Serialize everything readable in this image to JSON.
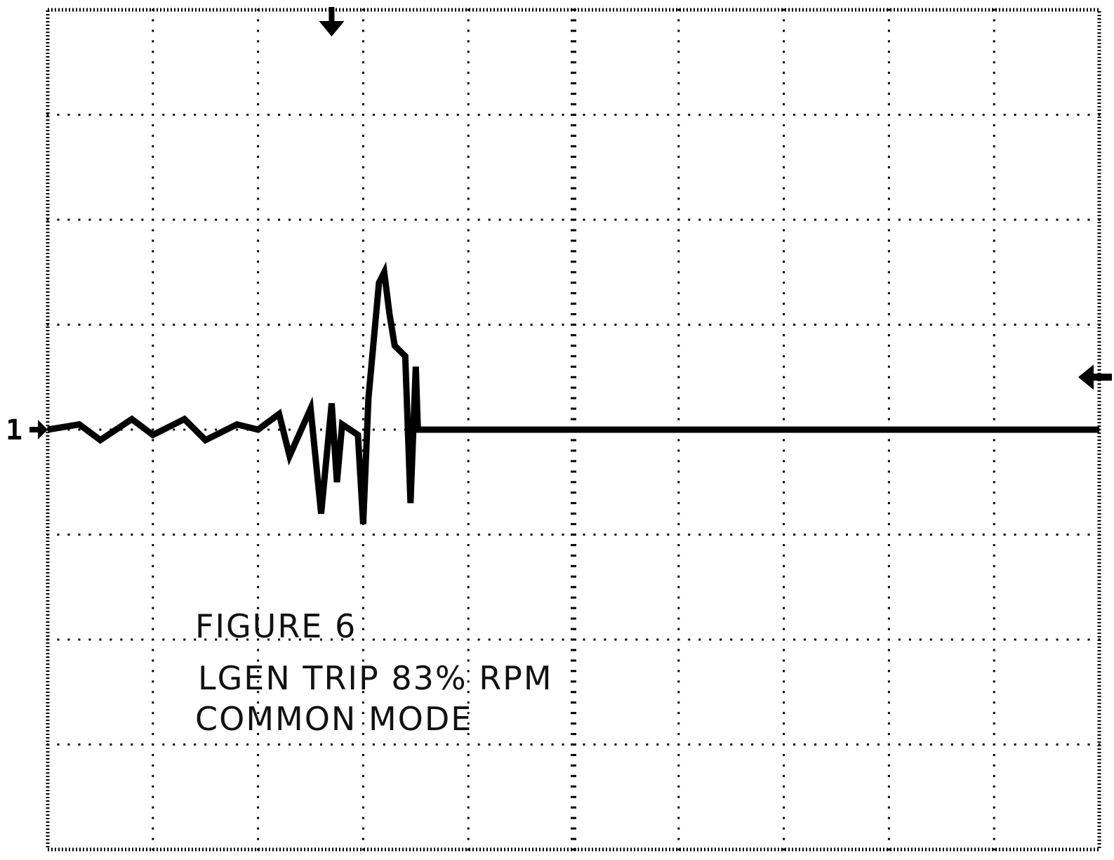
{
  "colors": {
    "background": "#ffffff",
    "trace": "#000000",
    "grid": "#000000",
    "annotation": "#111111"
  },
  "scope": {
    "channel_marker_label": "1",
    "trigger_marker_icon": "arrow-down-icon",
    "trigger_level_icon": "arrow-left-icon",
    "channel_marker_icon": "arrow-right-icon"
  },
  "annotation": {
    "line1": "FIGURE 6",
    "line2": "LGEN TRIP 83% RPM",
    "line3": "COMMON MODE"
  },
  "chart_data": {
    "type": "line",
    "title": "",
    "xlabel": "",
    "ylabel": "",
    "units": "divisions",
    "grid": true,
    "x_divisions": 10,
    "y_divisions": 8,
    "xlim": [
      0,
      10
    ],
    "ylim": [
      -4,
      4
    ],
    "series": [
      {
        "x": [
          0.0,
          0.3,
          0.5,
          0.8,
          1.0,
          1.3,
          1.5,
          1.8,
          2.0,
          2.2,
          2.3,
          2.5,
          2.6,
          2.7,
          2.75,
          2.8,
          2.95,
          3.0,
          3.05,
          3.15,
          3.2,
          3.25,
          3.3,
          3.4,
          3.45,
          3.5,
          3.52,
          4.0,
          5.0,
          6.0,
          7.0,
          8.0,
          9.0,
          10.0
        ],
        "y": [
          0.0,
          0.05,
          -0.1,
          0.1,
          -0.05,
          0.1,
          -0.1,
          0.05,
          0.0,
          0.15,
          -0.25,
          0.2,
          -0.8,
          0.25,
          -0.5,
          0.05,
          -0.05,
          -0.9,
          0.3,
          1.4,
          1.5,
          1.1,
          0.8,
          0.7,
          -0.7,
          0.6,
          0.0,
          0.0,
          0.0,
          0.0,
          0.0,
          0.0,
          0.0,
          0.0
        ]
      }
    ],
    "markers": {
      "trigger_position_x": 2.7,
      "trigger_level_y": 0.5,
      "channel_ground_y": 0.0
    }
  }
}
